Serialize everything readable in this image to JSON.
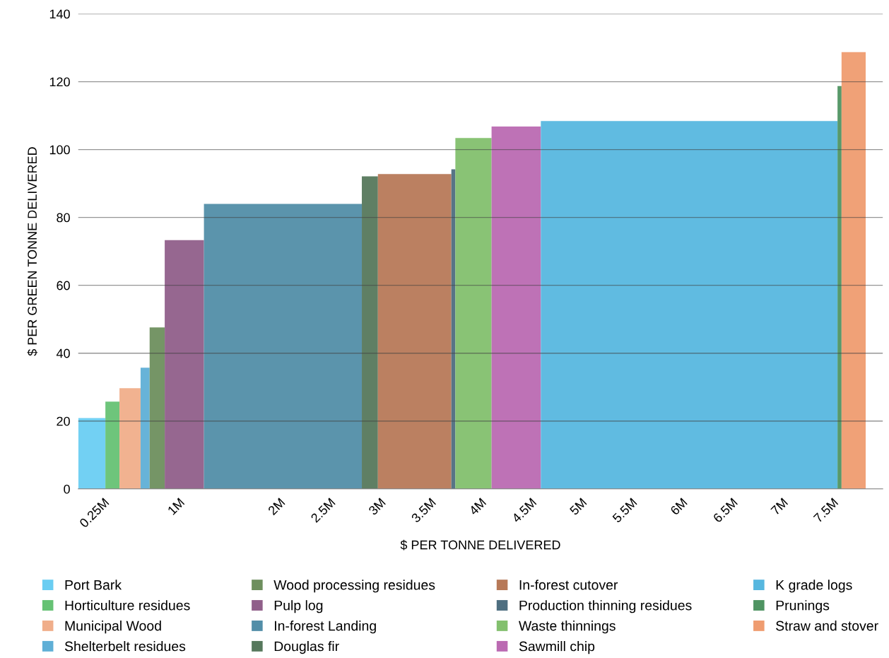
{
  "chart_data": {
    "type": "area",
    "xlabel": "$ PER TONNE DELIVERED",
    "ylabel": "$ PER GREEN TONNE DELIVERED",
    "xlim": [
      0,
      8
    ],
    "ylim": [
      0,
      140
    ],
    "xticks": [
      {
        "value": 0.25,
        "label": "0.25M"
      },
      {
        "value": 1,
        "label": "1M"
      },
      {
        "value": 2,
        "label": "2M"
      },
      {
        "value": 2.5,
        "label": "2.5M"
      },
      {
        "value": 3,
        "label": "3M"
      },
      {
        "value": 3.5,
        "label": "3.5M"
      },
      {
        "value": 4,
        "label": "4M"
      },
      {
        "value": 4.5,
        "label": "4.5M"
      },
      {
        "value": 5,
        "label": "5M"
      },
      {
        "value": 5.5,
        "label": "5.5M"
      },
      {
        "value": 6,
        "label": "6M"
      },
      {
        "value": 6.5,
        "label": "6.5M"
      },
      {
        "value": 7,
        "label": "7M"
      },
      {
        "value": 7.5,
        "label": "7.5M"
      }
    ],
    "yticks": [
      0,
      20,
      40,
      60,
      80,
      100,
      120,
      140
    ],
    "grid": "y",
    "legend": "bottom",
    "series": [
      {
        "name": "Port Bark",
        "color": "#6acdf2",
        "x": [
          0,
          0.27
        ],
        "values": [
          20.9,
          20.9
        ]
      },
      {
        "name": "Horticulture residues",
        "color": "#66c274",
        "x": [
          0.27,
          0.41
        ],
        "values": [
          25.7,
          25.7
        ]
      },
      {
        "name": "Municipal Wood",
        "color": "#f0ae8a",
        "x": [
          0.41,
          0.62
        ],
        "values": [
          29.7,
          29.7
        ]
      },
      {
        "name": "Shelterbelt residues",
        "color": "#5fafd6",
        "x": [
          0.62,
          0.71
        ],
        "values": [
          35.7,
          35.7
        ]
      },
      {
        "name": "Wood processing residues",
        "color": "#6e8f5e",
        "x": [
          0.71,
          0.86
        ],
        "values": [
          47.6,
          47.6
        ]
      },
      {
        "name": "Pulp log",
        "color": "#905f8a",
        "x": [
          0.86,
          1.25
        ],
        "values": [
          73.3,
          73.3
        ]
      },
      {
        "name": "In-forest Landing",
        "color": "#528ea8",
        "x": [
          1.25,
          2.82
        ],
        "values": [
          84,
          84
        ]
      },
      {
        "name": "Douglas fir",
        "color": "#56785c",
        "x": [
          2.82,
          2.98
        ],
        "values": [
          92.1,
          92.1
        ]
      },
      {
        "name": "In-forest cutover",
        "color": "#b77958",
        "x": [
          2.98,
          3.71
        ],
        "values": [
          92.8,
          92.8
        ]
      },
      {
        "name": "Production thinning residues",
        "color": "#4e6e80",
        "x": [
          3.71,
          3.75
        ],
        "values": [
          94.2,
          94.2
        ]
      },
      {
        "name": "Waste thinnings",
        "color": "#83c06e",
        "x": [
          3.75,
          4.11
        ],
        "values": [
          103.4,
          103.4
        ]
      },
      {
        "name": "Sawmill chip",
        "color": "#bb6ab2",
        "x": [
          4.11,
          4.6
        ],
        "values": [
          106.8,
          106.8
        ]
      },
      {
        "name": "K grade logs",
        "color": "#57b7df",
        "x": [
          4.6,
          7.55
        ],
        "values": [
          108.4,
          108.4
        ]
      },
      {
        "name": "Prunings",
        "color": "#4f9462",
        "x": [
          7.55,
          7.59
        ],
        "values": [
          118.7,
          118.7
        ]
      },
      {
        "name": "Straw and stover",
        "color": "#ef9c70",
        "x": [
          7.59,
          7.83
        ],
        "values": [
          128.7,
          128.7
        ]
      }
    ]
  }
}
